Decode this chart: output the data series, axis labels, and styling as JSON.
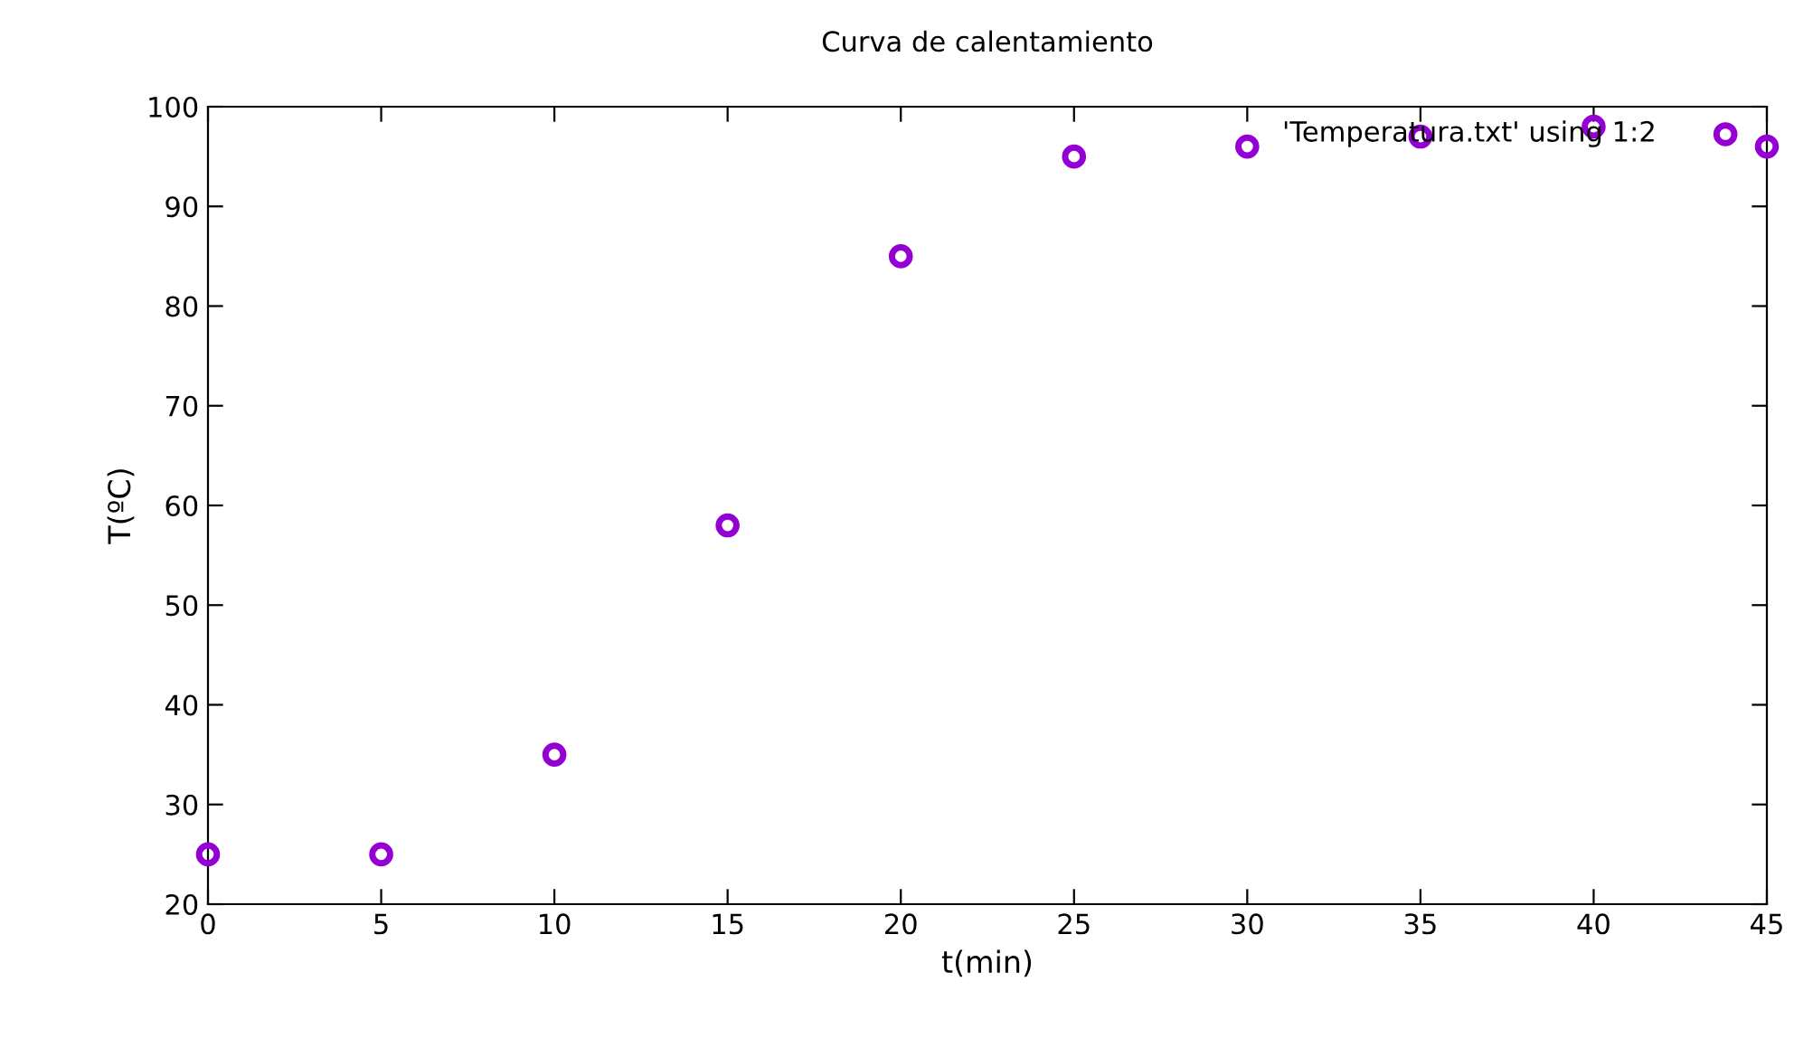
{
  "chart_data": {
    "type": "scatter",
    "title": "Curva de calentamiento",
    "xlabel": "t(min)",
    "ylabel": "T(ºC)",
    "x": [
      0,
      5,
      10,
      15,
      20,
      25,
      30,
      35,
      40,
      45
    ],
    "series": [
      {
        "name": "'Temperatura.txt' using 1:2",
        "color": "#9400d3",
        "values": [
          25,
          25,
          35,
          58,
          85,
          95,
          96,
          97,
          98,
          96
        ]
      }
    ],
    "xlim": [
      0,
      45
    ],
    "xticks": [
      0,
      5,
      10,
      15,
      20,
      25,
      30,
      35,
      40,
      45
    ],
    "ylim": [
      20,
      100
    ],
    "yticks": [
      20,
      30,
      40,
      50,
      60,
      70,
      80,
      90,
      100
    ],
    "marker": "circle",
    "legend": "top right",
    "grid": false
  }
}
